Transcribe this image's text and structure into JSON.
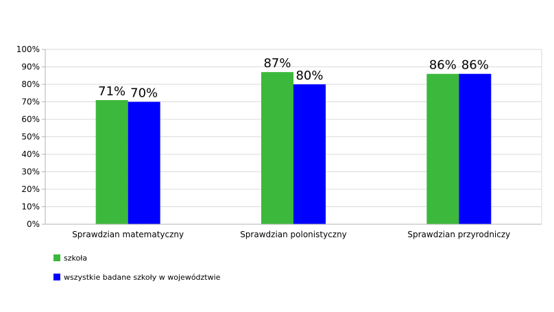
{
  "chart_data": {
    "type": "bar",
    "categories": [
      "Sprawdzian matematyczny",
      "Sprawdzian polonistyczny",
      "Sprawdzian przyrodniczy"
    ],
    "series": [
      {
        "name": "szkoła",
        "values": [
          71,
          87,
          86
        ],
        "labels": [
          "71%",
          "87%",
          "86%"
        ],
        "color": "#3cb93c"
      },
      {
        "name": "wszystkie badane szkoły w województwie",
        "values": [
          70,
          80,
          86
        ],
        "labels": [
          "70%",
          "80%",
          "86%"
        ],
        "color": "#0000ff"
      }
    ],
    "ylim": [
      0,
      100
    ],
    "yticks": [
      0,
      10,
      20,
      30,
      40,
      50,
      60,
      70,
      80,
      90,
      100
    ],
    "ytick_labels": [
      "0%",
      "10%",
      "20%",
      "30%",
      "40%",
      "50%",
      "60%",
      "70%",
      "80%",
      "90%",
      "100%"
    ],
    "title": "",
    "xlabel": "",
    "ylabel": "",
    "grid": true,
    "legend_position": "bottom-left"
  }
}
